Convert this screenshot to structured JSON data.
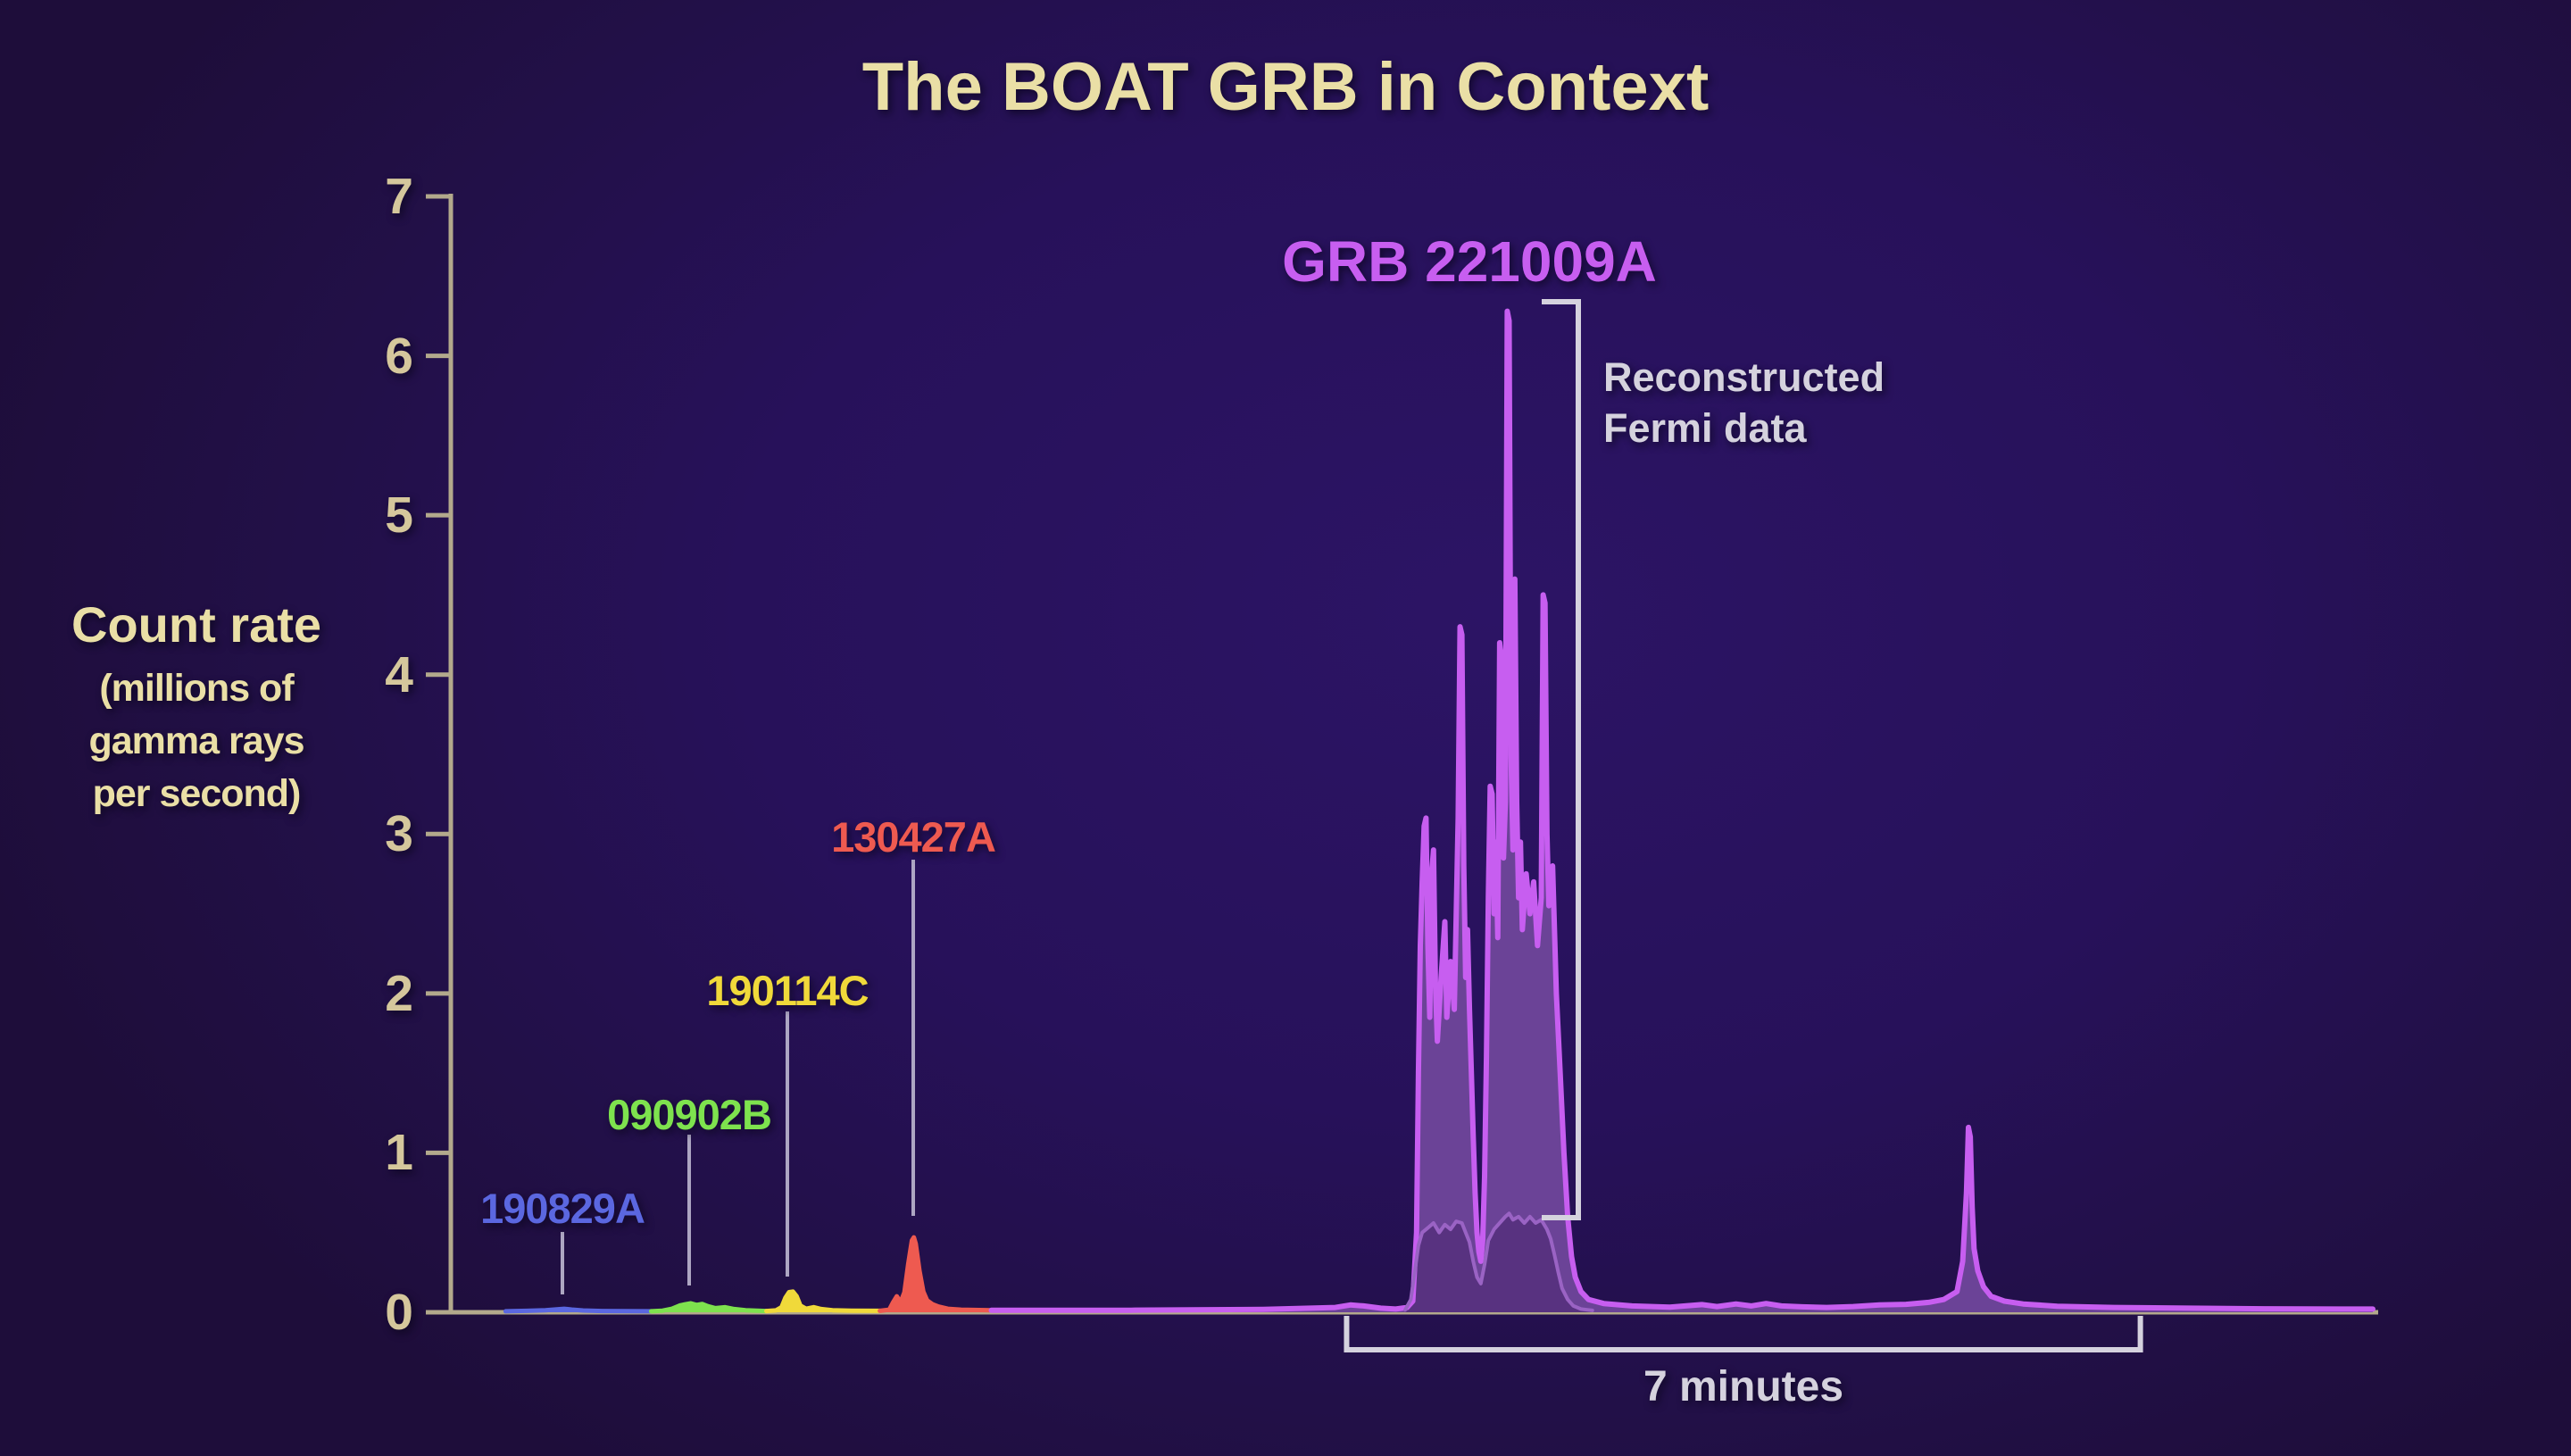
{
  "title": "The BOAT GRB in Context",
  "y_axis": {
    "title": "Count rate",
    "subtitle_lines": [
      "(millions of",
      "gamma rays",
      "per second)"
    ]
  },
  "annotations": {
    "main_burst_label": "GRB 221009A",
    "bracket_label_lines": [
      "Reconstructed",
      "Fermi data"
    ],
    "duration_label": "7 minutes"
  },
  "palette": {
    "background_center": "#2c1465",
    "background_edge": "#1e0d3a",
    "title_text": "#eadfa6",
    "axis": "#b3a98c",
    "tick_text": "#d5c79c",
    "annotation_text": "#d5d2de",
    "bracket": "#d5d2de",
    "leader_line": "#bcb7cf"
  },
  "chart_data": {
    "type": "area",
    "title": "The BOAT GRB in Context",
    "ylabel": "Count rate (millions of gamma rays per second)",
    "x_unit": "seconds (scale inferred from 7-minute bracket; no x tick labels shown)",
    "x_range_s": [
      0,
      1017
    ],
    "y_range": [
      0,
      7
    ],
    "yticks": [
      0,
      1,
      2,
      3,
      4,
      5,
      6,
      7
    ],
    "grid": false,
    "legend_position": "none",
    "duration_bracket": {
      "label": "7 minutes",
      "start_s": 474,
      "end_s": 894
    },
    "series": [
      {
        "id": "grb190829a",
        "label": "190829A",
        "color": "#5b67e0",
        "points": [
          [
            29,
            0.006
          ],
          [
            40,
            0.009
          ],
          [
            50,
            0.013
          ],
          [
            56,
            0.018
          ],
          [
            60,
            0.022
          ],
          [
            64,
            0.017
          ],
          [
            70,
            0.011
          ],
          [
            80,
            0.008
          ],
          [
            93,
            0.007
          ],
          [
            106,
            0.006
          ]
        ]
      },
      {
        "id": "grb090902b",
        "label": "090902B",
        "color": "#7ee24e",
        "points": [
          [
            106,
            0.006
          ],
          [
            112,
            0.01
          ],
          [
            117,
            0.022
          ],
          [
            121,
            0.042
          ],
          [
            124,
            0.05
          ],
          [
            127,
            0.056
          ],
          [
            130,
            0.046
          ],
          [
            133,
            0.052
          ],
          [
            136,
            0.038
          ],
          [
            140,
            0.026
          ],
          [
            145,
            0.032
          ],
          [
            150,
            0.02
          ],
          [
            156,
            0.013
          ],
          [
            162,
            0.01
          ],
          [
            167,
            0.008
          ]
        ]
      },
      {
        "id": "grb190114c",
        "label": "190114C",
        "color": "#f0d93a",
        "points": [
          [
            167,
            0.008
          ],
          [
            172,
            0.012
          ],
          [
            175,
            0.032
          ],
          [
            177,
            0.09
          ],
          [
            179,
            0.126
          ],
          [
            181,
            0.13
          ],
          [
            183,
            0.1
          ],
          [
            185,
            0.042
          ],
          [
            188,
            0.022
          ],
          [
            192,
            0.032
          ],
          [
            196,
            0.02
          ],
          [
            202,
            0.013
          ],
          [
            212,
            0.01
          ],
          [
            227,
            0.009
          ]
        ]
      },
      {
        "id": "grb130427a",
        "label": "130427A",
        "color": "#ee5a50",
        "points": [
          [
            227,
            0.009
          ],
          [
            232,
            0.016
          ],
          [
            234,
            0.062
          ],
          [
            236,
            0.1
          ],
          [
            238,
            0.062
          ],
          [
            240,
            0.125
          ],
          [
            242,
            0.3
          ],
          [
            244,
            0.45
          ],
          [
            245,
            0.47
          ],
          [
            246,
            0.43
          ],
          [
            248,
            0.26
          ],
          [
            250,
            0.13
          ],
          [
            252,
            0.075
          ],
          [
            255,
            0.05
          ],
          [
            258,
            0.036
          ],
          [
            263,
            0.022
          ],
          [
            270,
            0.016
          ],
          [
            286,
            0.013
          ]
        ]
      },
      {
        "id": "grb221009a",
        "label": "GRB 221009A",
        "color": "#c75ef0",
        "fill": "#6b4397",
        "stroke_width": 6,
        "points": [
          [
            286,
            0.013
          ],
          [
            360,
            0.013
          ],
          [
            430,
            0.018
          ],
          [
            468,
            0.03
          ],
          [
            476,
            0.046
          ],
          [
            483,
            0.04
          ],
          [
            492,
            0.026
          ],
          [
            500,
            0.02
          ],
          [
            506,
            0.03
          ],
          [
            509,
            0.07
          ],
          [
            511,
            0.5
          ],
          [
            512,
            1.5
          ],
          [
            513,
            2.3
          ],
          [
            514,
            2.7
          ],
          [
            515,
            3.05
          ],
          [
            516,
            3.1
          ],
          [
            517,
            2.3
          ],
          [
            518,
            1.85
          ],
          [
            519,
            2.75
          ],
          [
            520,
            2.9
          ],
          [
            521,
            2.05
          ],
          [
            522,
            1.7
          ],
          [
            524,
            2.1
          ],
          [
            526,
            2.45
          ],
          [
            527,
            1.85
          ],
          [
            529,
            2.2
          ],
          [
            531,
            1.9
          ],
          [
            533,
            3.1
          ],
          [
            534,
            4.3
          ],
          [
            535,
            4.25
          ],
          [
            536,
            2.8
          ],
          [
            537,
            2.1
          ],
          [
            538,
            2.4
          ],
          [
            539,
            1.9
          ],
          [
            540,
            1.5
          ],
          [
            541,
            1.1
          ],
          [
            542,
            0.75
          ],
          [
            543,
            0.5
          ],
          [
            544,
            0.38
          ],
          [
            545,
            0.32
          ],
          [
            546,
            0.45
          ],
          [
            547,
            0.85
          ],
          [
            548,
            1.6
          ],
          [
            549,
            2.6
          ],
          [
            550,
            3.3
          ],
          [
            551,
            3.25
          ],
          [
            552,
            2.5
          ],
          [
            553,
            2.95
          ],
          [
            554,
            2.35
          ],
          [
            555,
            4.2
          ],
          [
            556,
            4.1
          ],
          [
            557,
            2.85
          ],
          [
            558,
            3.2
          ],
          [
            559,
            6.28
          ],
          [
            560,
            6.22
          ],
          [
            561,
            3.5
          ],
          [
            562,
            2.9
          ],
          [
            563,
            4.6
          ],
          [
            564,
            3.2
          ],
          [
            565,
            2.6
          ],
          [
            566,
            2.95
          ],
          [
            567,
            2.4
          ],
          [
            569,
            2.75
          ],
          [
            571,
            2.5
          ],
          [
            573,
            2.7
          ],
          [
            575,
            2.3
          ],
          [
            577,
            2.6
          ],
          [
            578,
            4.5
          ],
          [
            579,
            4.45
          ],
          [
            580,
            3.0
          ],
          [
            581,
            2.55
          ],
          [
            583,
            2.8
          ],
          [
            585,
            2.0
          ],
          [
            587,
            1.5
          ],
          [
            589,
            1.0
          ],
          [
            591,
            0.6
          ],
          [
            593,
            0.35
          ],
          [
            595,
            0.22
          ],
          [
            598,
            0.13
          ],
          [
            602,
            0.08
          ],
          [
            610,
            0.055
          ],
          [
            625,
            0.04
          ],
          [
            645,
            0.032
          ],
          [
            662,
            0.048
          ],
          [
            670,
            0.036
          ],
          [
            680,
            0.052
          ],
          [
            688,
            0.04
          ],
          [
            696,
            0.055
          ],
          [
            704,
            0.04
          ],
          [
            715,
            0.034
          ],
          [
            728,
            0.03
          ],
          [
            742,
            0.036
          ],
          [
            756,
            0.046
          ],
          [
            770,
            0.05
          ],
          [
            782,
            0.062
          ],
          [
            790,
            0.08
          ],
          [
            797,
            0.13
          ],
          [
            800,
            0.32
          ],
          [
            802,
            0.75
          ],
          [
            803,
            1.16
          ],
          [
            804,
            1.1
          ],
          [
            805,
            0.66
          ],
          [
            806,
            0.4
          ],
          [
            808,
            0.26
          ],
          [
            811,
            0.16
          ],
          [
            815,
            0.1
          ],
          [
            822,
            0.07
          ],
          [
            832,
            0.052
          ],
          [
            850,
            0.038
          ],
          [
            880,
            0.03
          ],
          [
            920,
            0.026
          ],
          [
            960,
            0.022
          ],
          [
            1000,
            0.02
          ],
          [
            1017,
            0.02
          ]
        ]
      },
      {
        "id": "fermi_saturated",
        "label": "Reconstructed Fermi data",
        "color": "#9a63c4",
        "fill": "#583280",
        "stroke_width": 4,
        "points": [
          [
            505,
            0.015
          ],
          [
            508,
            0.08
          ],
          [
            510,
            0.25
          ],
          [
            512,
            0.42
          ],
          [
            514,
            0.5
          ],
          [
            517,
            0.53
          ],
          [
            520,
            0.56
          ],
          [
            523,
            0.5
          ],
          [
            526,
            0.55
          ],
          [
            529,
            0.52
          ],
          [
            532,
            0.57
          ],
          [
            535,
            0.56
          ],
          [
            537,
            0.5
          ],
          [
            539,
            0.44
          ],
          [
            541,
            0.32
          ],
          [
            543,
            0.22
          ],
          [
            545,
            0.18
          ],
          [
            547,
            0.3
          ],
          [
            549,
            0.45
          ],
          [
            552,
            0.52
          ],
          [
            555,
            0.56
          ],
          [
            558,
            0.6
          ],
          [
            560,
            0.62
          ],
          [
            562,
            0.58
          ],
          [
            565,
            0.6
          ],
          [
            568,
            0.56
          ],
          [
            571,
            0.6
          ],
          [
            574,
            0.56
          ],
          [
            577,
            0.58
          ],
          [
            580,
            0.52
          ],
          [
            582,
            0.46
          ],
          [
            584,
            0.36
          ],
          [
            586,
            0.25
          ],
          [
            588,
            0.15
          ],
          [
            591,
            0.08
          ],
          [
            594,
            0.04
          ],
          [
            598,
            0.02
          ],
          [
            604,
            0.012
          ]
        ]
      }
    ]
  }
}
